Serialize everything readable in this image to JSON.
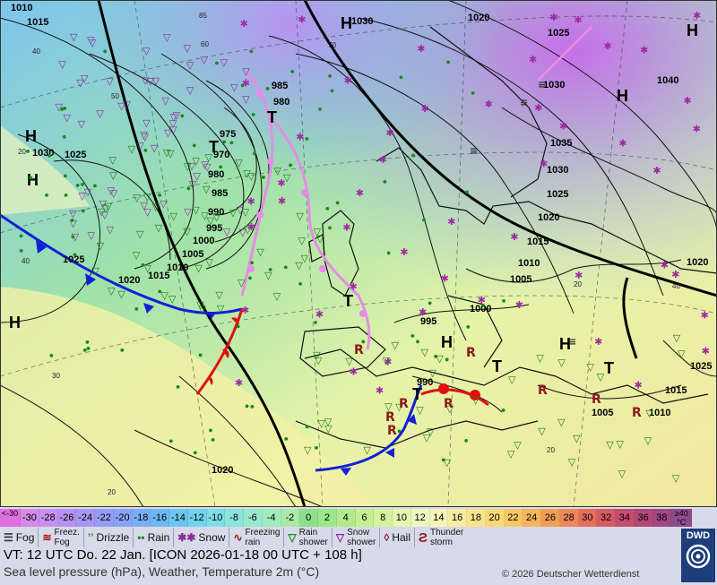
{
  "map": {
    "pressure_labels": [
      "1010",
      "1015",
      "1030",
      "1025",
      "1020",
      "1015",
      "1010",
      "1005",
      "1000",
      "995",
      "990",
      "985",
      "980",
      "975",
      "970",
      "985",
      "980",
      "1030",
      "1020",
      "1025",
      "1030",
      "1040",
      "1035",
      "1030",
      "1025",
      "1020",
      "1015",
      "1010",
      "1005",
      "1000",
      "995",
      "990",
      "1005",
      "1010",
      "1015",
      "1020",
      "1025",
      "1025",
      "1020"
    ],
    "high_labels": [
      "H",
      "H",
      "H",
      "H",
      "H",
      "H",
      "H",
      "H"
    ],
    "low_labels": [
      "T",
      "T",
      "T",
      "T",
      "T",
      "T"
    ],
    "temp_labels": [
      "50",
      "60",
      "70",
      "40",
      "30",
      "20",
      "40",
      "20",
      "40",
      "20",
      "20",
      "85"
    ],
    "weather_symbols": {
      "rain": "•",
      "shower": "▽",
      "snow": "✱",
      "thunder": "R",
      "fog": "≡",
      "freezing_fog": "ℱ",
      "drizzle": "ʼ"
    }
  },
  "scale": {
    "values": [
      "<-30",
      "-30",
      "-28",
      "-26",
      "-24",
      "-22",
      "-20",
      "-18",
      "-16",
      "-14",
      "-12",
      "-10",
      "-8",
      "-6",
      "-4",
      "-2",
      "0",
      "2",
      "4",
      "6",
      "8",
      "10",
      "12",
      "14",
      "16",
      "18",
      "20",
      "22",
      "24",
      "26",
      "28",
      "30",
      "32",
      "34",
      "36",
      "38",
      "≥40 °C"
    ],
    "colors": [
      "#e070e0",
      "#d68ae8",
      "#c990ee",
      "#b892f0",
      "#a897f2",
      "#979df5",
      "#88a4f7",
      "#7aaef5",
      "#6db8f1",
      "#6ac6ef",
      "#72d2ea",
      "#7fdde6",
      "#8be4dc",
      "#98e8cd",
      "#a4ebbc",
      "#ade9a6",
      "#8edf8a",
      "#9ee68c",
      "#b2eb8e",
      "#c5ef93",
      "#d6f29c",
      "#e5f5b2",
      "#eef5c4",
      "#f5f3b8",
      "#f7eda2",
      "#f8e58c",
      "#f8d879",
      "#f8c867",
      "#f6b45c",
      "#f29d58",
      "#ed8658",
      "#e36e5c",
      "#d65a62",
      "#c84c6d",
      "#b34777",
      "#a24882",
      "#8e4b8c"
    ]
  },
  "legend": [
    {
      "icon": "fog-icon",
      "label": "Fog"
    },
    {
      "icon": "freezing-fog-icon",
      "label": "Freez.\nFog"
    },
    {
      "icon": "drizzle-icon",
      "label": "Drizzle"
    },
    {
      "icon": "rain-icon",
      "label": "Rain"
    },
    {
      "icon": "snow-icon",
      "label": "Snow"
    },
    {
      "icon": "freezing-rain-icon",
      "label": "Freezing\nrain"
    },
    {
      "icon": "rain-shower-icon",
      "label": "Rain\nshower"
    },
    {
      "icon": "snow-shower-icon",
      "label": "Snow\nshower"
    },
    {
      "icon": "hail-icon",
      "label": "Hail"
    },
    {
      "icon": "thunderstorm-icon",
      "label": "Thunder\nstorm"
    }
  ],
  "footer": {
    "valid_time": "VT: 12 UTC Do.  22 Jan. [ICON 2026-01-18  00 UTC + 108 h]",
    "description": "Sea level pressure (hPa), Weather, Temperature 2m (°C)",
    "copyright": "© 2026 Deutscher Wetterdienst",
    "logo_text": "DWD"
  }
}
